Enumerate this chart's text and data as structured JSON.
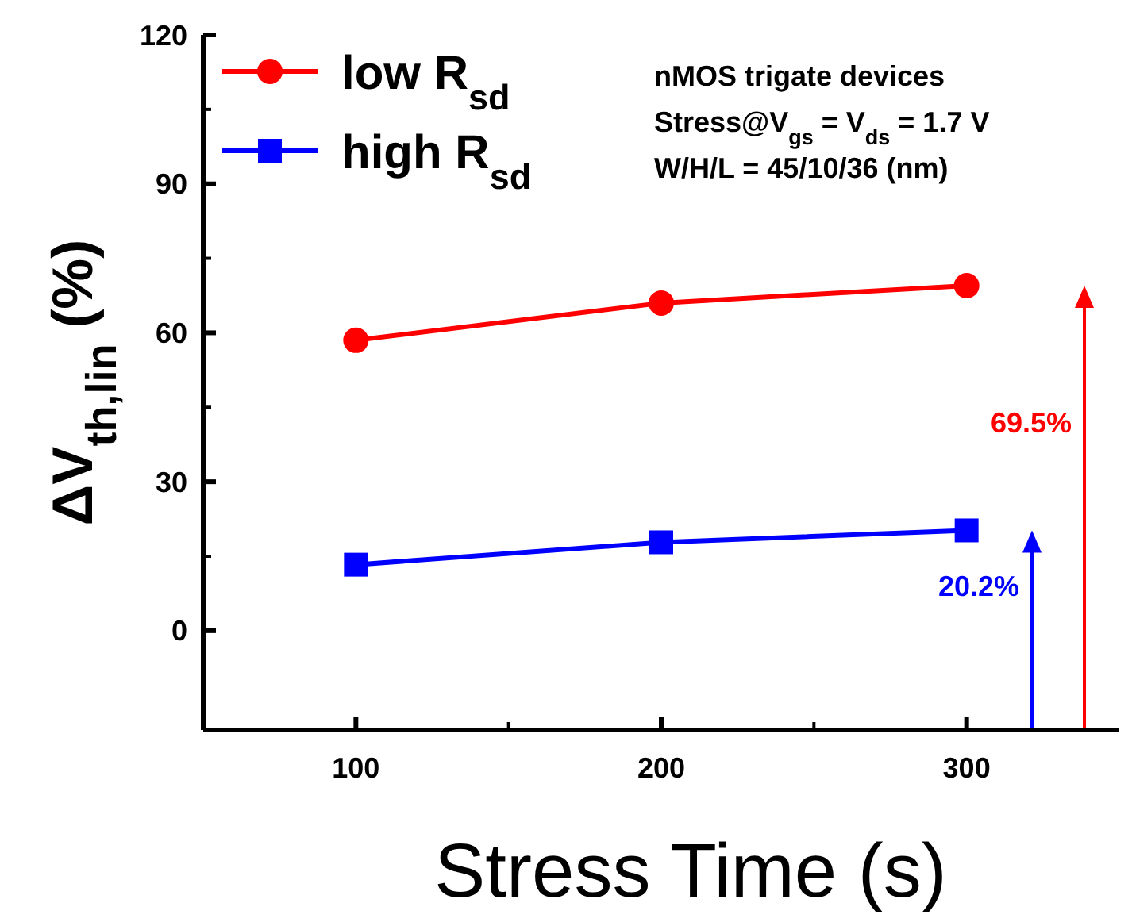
{
  "chart_data": {
    "type": "line",
    "xlabel": "Stress Time (s)",
    "ylabel": "ΔV$_{th,lin}$ (%)",
    "x": [
      100,
      200,
      300
    ],
    "series": [
      {
        "name": "low   R$_{sd}$",
        "color": "#ff0000",
        "values": [
          58.5,
          66,
          69.5
        ],
        "marker": "circle"
      },
      {
        "name": "high R$_{sd}$",
        "color": "#0000ff",
        "values": [
          13.3,
          17.8,
          20.2
        ],
        "marker": "square"
      }
    ],
    "xlim": [
      50,
      350
    ],
    "xticks": [
      100,
      200,
      300
    ],
    "ylim": [
      -20,
      120
    ],
    "yticks": [
      0,
      30,
      60,
      90,
      120
    ],
    "legend": "top left",
    "grid": false,
    "annotations": [
      "nMOS trigate devices",
      "Stress@V$_{gs}$ = V$_{ds}$ = 1.7 V",
      "W/H/L = 45/10/36 (nm)",
      "69.5%",
      "20.2%"
    ]
  }
}
